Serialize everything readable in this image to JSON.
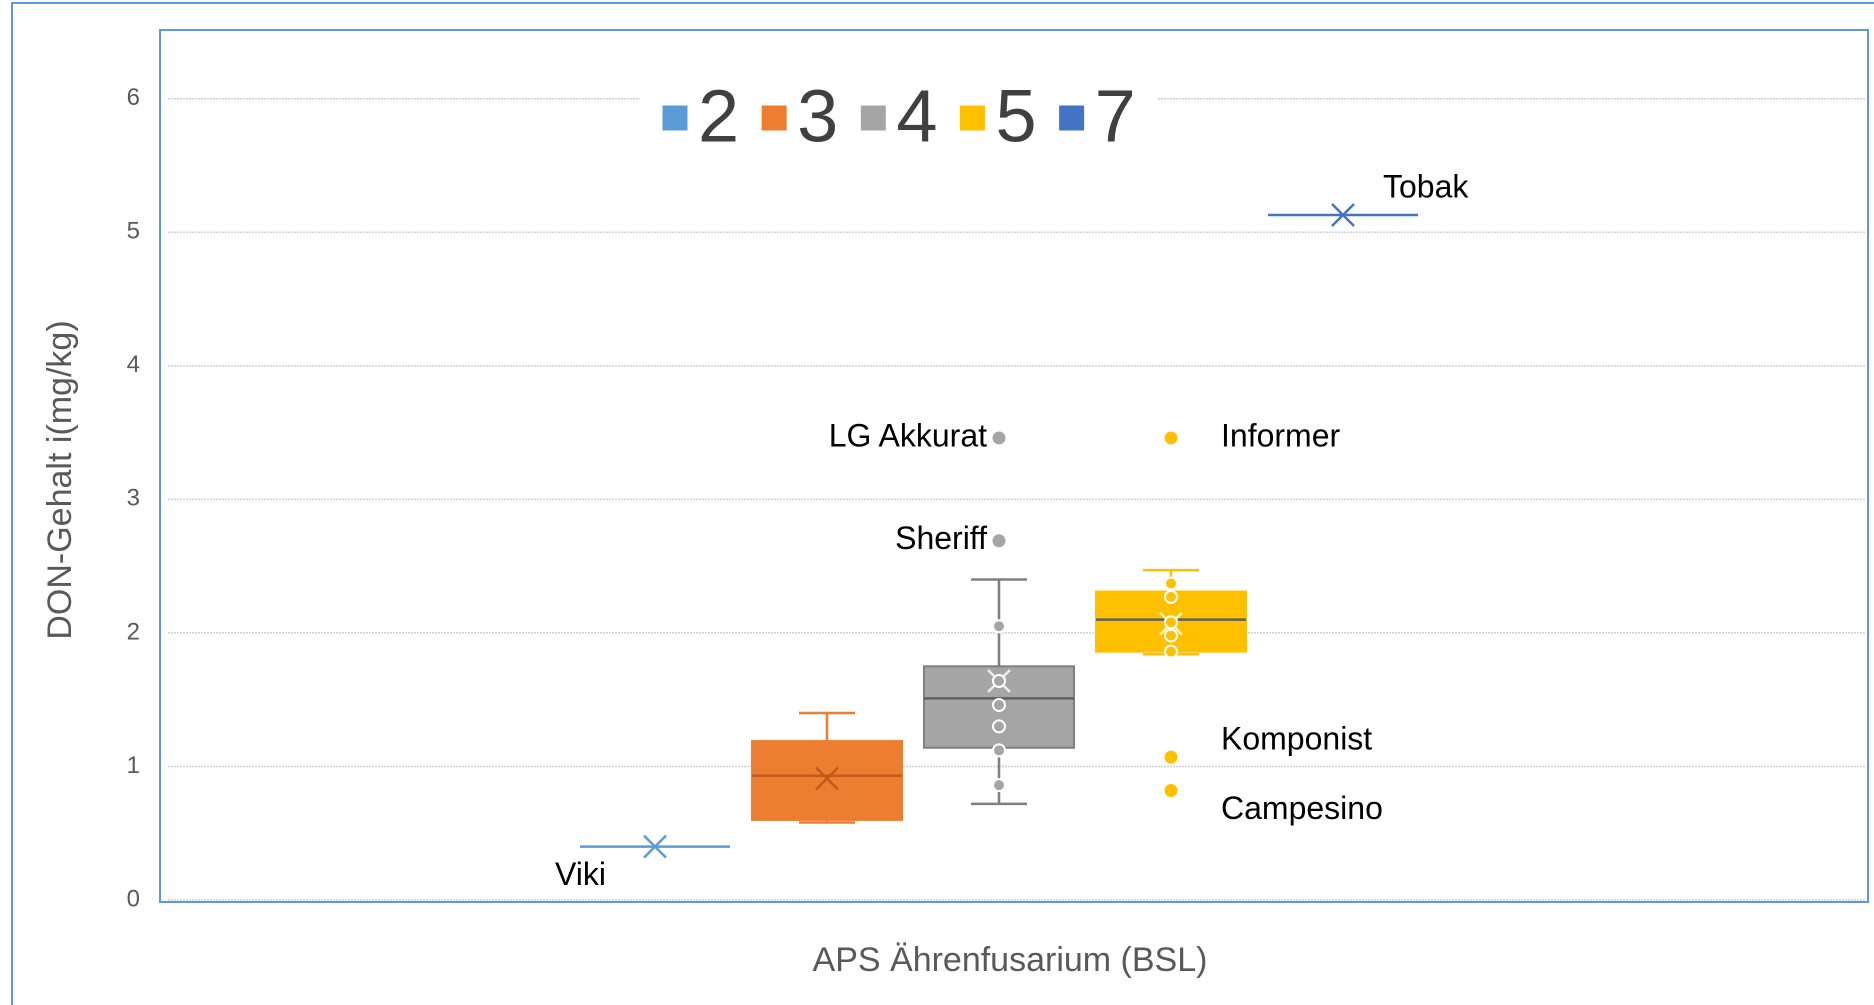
{
  "chart_data": {
    "type": "box",
    "y_label": "DON-Gehalt i(mg/kg)",
    "x_label": "APS Ährenfusarium (BSL)",
    "ylim": [
      0,
      6.5
    ],
    "yticks": [
      0,
      1,
      2,
      3,
      4,
      5,
      6
    ],
    "grid": true,
    "legend": "top",
    "series": [
      {
        "name": "2",
        "color": "#5b9bd5",
        "min": 0.4,
        "q1": 0.4,
        "median": 0.4,
        "q3": 0.4,
        "max": 0.4,
        "mean": 0.4,
        "points": [],
        "outliers": [],
        "annotation": "Viki"
      },
      {
        "name": "3",
        "color": "#ed7d31",
        "min": 0.58,
        "q1": 0.6,
        "median": 0.93,
        "q3": 1.19,
        "max": 1.4,
        "mean": 0.91,
        "points": [],
        "outliers": []
      },
      {
        "name": "4",
        "color": "#a5a5a5",
        "min": 0.72,
        "q1": 1.14,
        "median": 1.51,
        "q3": 1.75,
        "max": 2.4,
        "mean": 1.64,
        "points": [
          2.05,
          1.64,
          1.46,
          1.3,
          1.12,
          0.86
        ],
        "outliers": [
          {
            "value": 3.46,
            "annotation": "LG Akkurat"
          },
          {
            "value": 2.69,
            "annotation": "Sheriff"
          }
        ]
      },
      {
        "name": "5",
        "color": "#ffc000",
        "min": 1.84,
        "q1": 1.86,
        "median": 2.1,
        "q3": 2.31,
        "max": 2.47,
        "mean": 2.07,
        "points": [
          2.37,
          2.27,
          2.08,
          1.98,
          1.86
        ],
        "outliers": [
          {
            "value": 3.46,
            "annotation": "Informer"
          },
          {
            "value": 1.07,
            "annotation": "Komponist"
          },
          {
            "value": 0.82,
            "annotation": "Campesino"
          }
        ]
      },
      {
        "name": "7",
        "color": "#4472c4",
        "min": 5.13,
        "q1": 5.13,
        "median": 5.13,
        "q3": 5.13,
        "max": 5.13,
        "mean": 5.13,
        "points": [],
        "outliers": [],
        "annotation": "Tobak"
      }
    ]
  }
}
